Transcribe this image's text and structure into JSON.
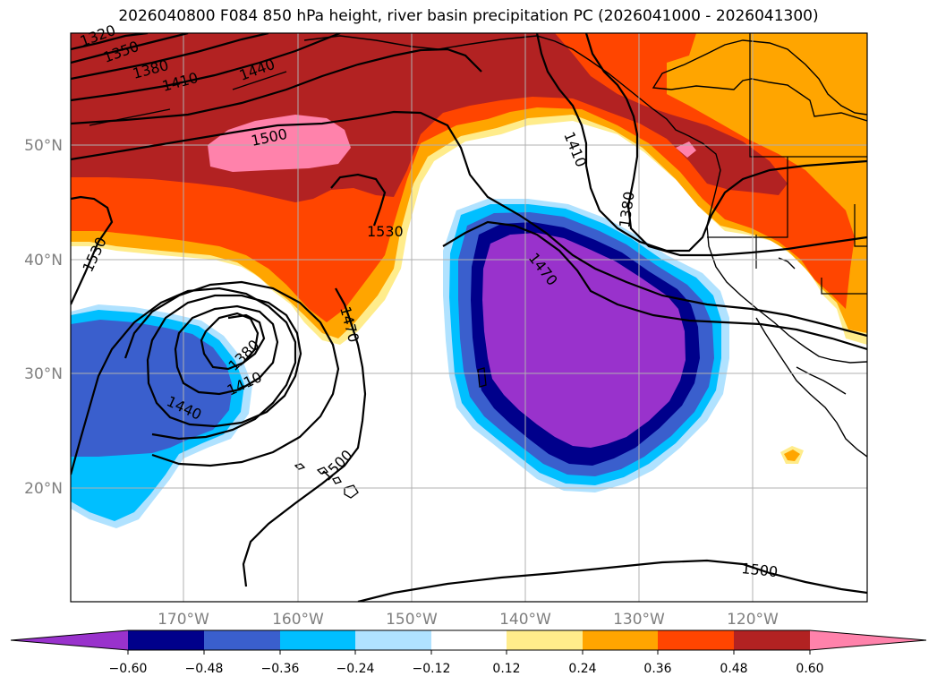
{
  "title": "2026040800 F084 850 hPa height, river basin precipitation PC (2026041000 - 2026041300)",
  "axes": {
    "lon_labels": [
      "170°W",
      "160°W",
      "150°W",
      "140°W",
      "130°W",
      "120°W"
    ],
    "lat_labels": [
      "50°N",
      "40°N",
      "30°N",
      "20°N"
    ]
  },
  "colorbar": {
    "ticks": [
      "−0.60",
      "−0.48",
      "−0.36",
      "−0.24",
      "−0.12",
      "0.12",
      "0.24",
      "0.36",
      "0.48",
      "0.60"
    ],
    "colors": [
      "#9932cc",
      "#00008b",
      "#3a5fcd",
      "#00bfff",
      "#b0e2ff",
      "#ffffff",
      "#ffec8b",
      "#ffa500",
      "#ff4500",
      "#b22222",
      "#ff82ab"
    ]
  },
  "contour_labels": [
    "1320",
    "1350",
    "1380",
    "1410",
    "1440",
    "1500",
    "1530",
    "1530",
    "1410",
    "1380",
    "1470",
    "1470",
    "1380",
    "1410",
    "1440",
    "1500",
    "1500"
  ],
  "colors": {
    "purple": "#9932cc",
    "navy": "#00008b",
    "blue": "#3a5fcd",
    "cyan": "#00bfff",
    "lightblue": "#b0e2ff",
    "yellow": "#ffec8b",
    "orange": "#ffa500",
    "orangered": "#ff4500",
    "firebrick": "#b22222",
    "pink": "#ff82ab"
  }
}
